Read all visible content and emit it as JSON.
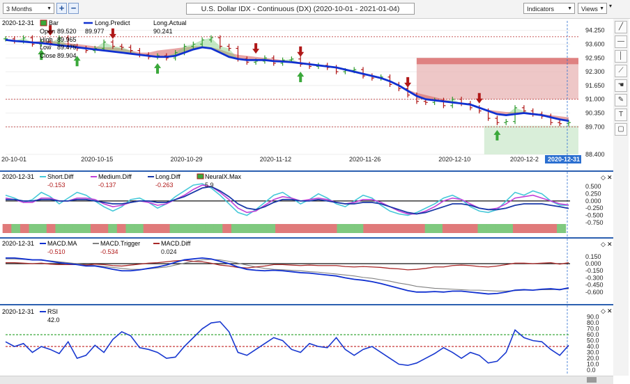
{
  "toolbar": {
    "period": "3 Months",
    "zoom_in": "+",
    "zoom_out": "−",
    "title": "U.S. Dollar IDX - Continuous (DX) (2020-10-01 - 2021-01-04)",
    "indicators": "Indicators",
    "views": "Views",
    "pin": "▾"
  },
  "side_tools": [
    "pencil-icon",
    "horizontal-line-icon",
    "vertical-line-icon",
    "trend-icon",
    "hand-icon",
    "marker-icon",
    "text-icon",
    "speech-icon"
  ],
  "colors": {
    "long_predict": "#1030d0",
    "up_arrow": "#3aa83a",
    "down_arrow": "#b01818",
    "red_band": "#d65b5b",
    "green_band": "#7fcf7f",
    "short_diff": "#45c8d8",
    "medium_diff": "#c040d8",
    "long_diff": "#1838a8",
    "macd_ma": "#1030d0",
    "macd_trigger": "#808080",
    "macd_diff": "#a82828",
    "rsi": "#1838d0"
  },
  "chart_data": [
    {
      "type": "ohlc-bar",
      "pane": "price",
      "legend": {
        "date": "2020-12-31",
        "bar_label": "Bar",
        "open_label": "Open",
        "open": "89.520",
        "high_label": "High",
        "high": "89.965",
        "low_label": "Low",
        "low": "89.475",
        "close_label": "Close",
        "close": "89.904",
        "long_predict_label": "Long.Predict",
        "long_predict": "89.977",
        "long_actual_label": "Long.Actual",
        "long_actual": "90.241"
      },
      "x_ticks": [
        "20-10-01",
        "2020-10-15",
        "2020-10-29",
        "2020-11-12",
        "2020-11-26",
        "2020-12-10",
        "2020-12-2",
        "2020-12-31"
      ],
      "y_ticks": [
        "94.250",
        "93.600",
        "92.950",
        "92.300",
        "91.650",
        "91.000",
        "90.350",
        "89.700",
        "88.400"
      ],
      "ylim": [
        88.2,
        94.6
      ],
      "close": [
        93.85,
        93.75,
        93.9,
        93.6,
        93.7,
        93.65,
        93.9,
        93.5,
        93.4,
        93.3,
        93.4,
        93.7,
        93.5,
        93.45,
        93.3,
        93.1,
        93.0,
        93.05,
        92.95,
        93.2,
        93.5,
        93.6,
        93.8,
        93.9,
        93.5,
        93.4,
        92.9,
        92.75,
        92.8,
        92.95,
        92.7,
        92.85,
        92.9,
        92.65,
        92.55,
        92.6,
        92.5,
        92.3,
        92.35,
        92.4,
        92.1,
        92.0,
        92.05,
        91.7,
        91.5,
        91.2,
        90.9,
        90.85,
        90.95,
        90.7,
        91.0,
        90.8,
        90.6,
        90.45,
        90.1,
        89.9,
        89.95,
        90.6,
        90.45,
        90.3,
        90.2,
        89.9,
        89.85,
        89.9
      ],
      "long_predict": [
        93.8,
        93.75,
        93.72,
        93.68,
        93.65,
        93.6,
        93.55,
        93.5,
        93.45,
        93.4,
        93.35,
        93.3,
        93.25,
        93.2,
        93.15,
        93.1,
        93.05,
        93.0,
        93.0,
        93.05,
        93.2,
        93.35,
        93.45,
        93.4,
        93.2,
        93.0,
        92.9,
        92.85,
        92.85,
        92.85,
        92.8,
        92.78,
        92.75,
        92.7,
        92.65,
        92.6,
        92.55,
        92.5,
        92.4,
        92.3,
        92.2,
        92.1,
        92.0,
        91.85,
        91.65,
        91.4,
        91.15,
        91.0,
        90.95,
        90.9,
        90.85,
        90.8,
        90.75,
        90.6,
        90.45,
        90.3,
        90.25,
        90.3,
        90.35,
        90.3,
        90.25,
        90.15,
        90.05,
        89.98
      ],
      "resistance_band_top": [
        93.6,
        93.6,
        93.65,
        93.7,
        93.75,
        93.75,
        93.7,
        93.65,
        93.6,
        93.55,
        93.5,
        93.45,
        93.45,
        93.4,
        93.3,
        93.2,
        93.2,
        93.3,
        93.35,
        93.4,
        93.45,
        93.5,
        93.5,
        93.45,
        93.35,
        93.2,
        93.1,
        93.05,
        93.0,
        92.95,
        92.9,
        92.85,
        92.8,
        92.75,
        92.7,
        92.6,
        92.5,
        92.4,
        92.3,
        92.2,
        92.1,
        92.0,
        91.9,
        91.75,
        91.6,
        91.45,
        91.3,
        91.2,
        91.1,
        91.0,
        90.9,
        90.8,
        90.7,
        90.6,
        90.5,
        90.45,
        90.4,
        90.4,
        90.4,
        90.35,
        90.3,
        90.25,
        90.2,
        90.15
      ],
      "buy_signals": [
        4,
        8,
        17,
        33,
        55,
        65,
        67
      ],
      "sell_signals": [
        5,
        12,
        28,
        33,
        45,
        53,
        65
      ],
      "resistance_zones": [
        {
          "from_x": 0.73,
          "to_x": 1.0,
          "low": 92.65,
          "high": 92.95
        },
        {
          "from_x": 0.73,
          "to_x": 1.0,
          "low": 91.0,
          "high": 92.65
        }
      ],
      "support_zone": {
        "from_x": 0.85,
        "to_x": 1.0,
        "low": 88.4,
        "high": 89.75
      }
    },
    {
      "type": "line",
      "pane": "diff",
      "legend": {
        "date": "2020-12-31",
        "short_label": "Short.Diff",
        "short": "-0.153",
        "medium_label": "Medium.Diff",
        "medium": "-0.137",
        "long_label": "Long.Diff",
        "long": "-0.263",
        "neural_label": "NeuralX.Max",
        "neural": "5.9"
      },
      "y_ticks": [
        "0.500",
        "0.250",
        "0.000",
        "-0.250",
        "-0.500",
        "-0.750"
      ],
      "ylim": [
        -0.8,
        0.65
      ],
      "short_diff": [
        0.2,
        0.1,
        -0.05,
        0.05,
        0.3,
        0.15,
        -0.1,
        0.1,
        0.3,
        0.2,
        0.0,
        -0.2,
        -0.35,
        -0.2,
        0.05,
        0.1,
        -0.05,
        -0.25,
        -0.1,
        0.15,
        0.35,
        0.55,
        0.6,
        0.45,
        0.2,
        -0.1,
        -0.4,
        -0.5,
        -0.3,
        -0.05,
        0.2,
        0.3,
        0.1,
        -0.1,
        0.05,
        0.25,
        0.1,
        -0.1,
        -0.2,
        0.0,
        0.2,
        0.1,
        -0.15,
        -0.35,
        -0.45,
        -0.5,
        -0.4,
        -0.25,
        -0.1,
        0.1,
        0.2,
        0.05,
        -0.2,
        -0.35,
        -0.4,
        -0.3,
        0.0,
        0.3,
        0.2,
        0.35,
        0.25,
        0.0,
        -0.15,
        -0.15
      ],
      "medium_diff": [
        0.1,
        0.05,
        -0.05,
        -0.05,
        0.1,
        0.1,
        0.0,
        0.0,
        0.1,
        0.1,
        0.05,
        -0.1,
        -0.2,
        -0.15,
        -0.05,
        0.0,
        -0.05,
        -0.15,
        -0.1,
        0.05,
        0.2,
        0.4,
        0.55,
        0.5,
        0.3,
        0.05,
        -0.25,
        -0.4,
        -0.35,
        -0.15,
        0.05,
        0.15,
        0.1,
        0.0,
        0.05,
        0.1,
        0.05,
        -0.05,
        -0.1,
        -0.05,
        0.05,
        0.05,
        -0.05,
        -0.2,
        -0.35,
        -0.45,
        -0.45,
        -0.35,
        -0.2,
        0.0,
        0.1,
        0.05,
        -0.1,
        -0.25,
        -0.3,
        -0.25,
        -0.1,
        0.1,
        0.15,
        0.2,
        0.1,
        0.0,
        -0.1,
        -0.14
      ],
      "long_diff": [
        0.05,
        0.05,
        0.0,
        0.0,
        0.05,
        0.05,
        0.0,
        0.0,
        0.05,
        0.05,
        0.0,
        -0.05,
        -0.1,
        -0.1,
        -0.05,
        0.0,
        0.0,
        -0.05,
        -0.05,
        0.05,
        0.15,
        0.3,
        0.45,
        0.5,
        0.35,
        0.15,
        -0.1,
        -0.25,
        -0.3,
        -0.2,
        -0.05,
        0.05,
        0.05,
        0.0,
        0.0,
        0.05,
        0.0,
        -0.05,
        -0.1,
        -0.1,
        -0.05,
        -0.05,
        -0.1,
        -0.2,
        -0.3,
        -0.4,
        -0.45,
        -0.4,
        -0.3,
        -0.2,
        -0.1,
        -0.1,
        -0.15,
        -0.25,
        -0.3,
        -0.3,
        -0.25,
        -0.15,
        -0.1,
        -0.1,
        -0.1,
        -0.15,
        -0.2,
        -0.26
      ],
      "neural_strip": [
        "r",
        "g",
        "r",
        "g",
        "g",
        "r",
        "g",
        "g",
        "g",
        "g",
        "r",
        "r",
        "g",
        "r",
        "g",
        "g",
        "r",
        "r",
        "r",
        "g",
        "g",
        "g",
        "g",
        "g",
        "g",
        "r",
        "g",
        "g",
        "g",
        "g",
        "g",
        "r",
        "r",
        "r",
        "r",
        "r",
        "r",
        "r",
        "g",
        "g",
        "g",
        "r",
        "r",
        "r",
        "r",
        "r",
        "r",
        "r",
        "g",
        "g",
        "r",
        "r",
        "r",
        "r",
        "g",
        "g",
        "g",
        "g",
        "r",
        "r",
        "r",
        "r",
        "r",
        "g"
      ]
    },
    {
      "type": "line",
      "pane": "macd",
      "legend": {
        "date": "2020-12-31",
        "ma_label": "MACD.MA",
        "ma": "-0.510",
        "trigger_label": "MACD.Trigger",
        "trigger": "-0.534",
        "diff_label": "MACD.Diff",
        "diff": "0.024"
      },
      "y_ticks": [
        "0.150",
        "0.000",
        "-0.150",
        "-0.300",
        "-0.450",
        "-0.600"
      ],
      "ylim": [
        -0.72,
        0.25
      ],
      "macd_ma": [
        0.12,
        0.12,
        0.1,
        0.08,
        0.08,
        0.05,
        0.02,
        0.0,
        -0.02,
        -0.05,
        -0.05,
        -0.08,
        -0.12,
        -0.15,
        -0.15,
        -0.13,
        -0.1,
        -0.07,
        -0.03,
        0.03,
        0.08,
        0.1,
        0.12,
        0.1,
        0.05,
        0.0,
        -0.07,
        -0.12,
        -0.14,
        -0.15,
        -0.14,
        -0.15,
        -0.17,
        -0.19,
        -0.2,
        -0.22,
        -0.24,
        -0.26,
        -0.3,
        -0.33,
        -0.35,
        -0.38,
        -0.42,
        -0.47,
        -0.52,
        -0.57,
        -0.6,
        -0.6,
        -0.59,
        -0.6,
        -0.58,
        -0.58,
        -0.6,
        -0.62,
        -0.64,
        -0.63,
        -0.6,
        -0.56,
        -0.55,
        -0.56,
        -0.54,
        -0.53,
        -0.55,
        -0.51
      ],
      "macd_trigger": [
        0.1,
        0.1,
        0.09,
        0.08,
        0.07,
        0.06,
        0.04,
        0.02,
        0.0,
        -0.02,
        -0.04,
        -0.06,
        -0.08,
        -0.1,
        -0.12,
        -0.12,
        -0.11,
        -0.09,
        -0.07,
        -0.03,
        0.01,
        0.05,
        0.08,
        0.09,
        0.08,
        0.05,
        0.01,
        -0.03,
        -0.07,
        -0.1,
        -0.12,
        -0.13,
        -0.14,
        -0.15,
        -0.17,
        -0.18,
        -0.2,
        -0.22,
        -0.24,
        -0.26,
        -0.29,
        -0.31,
        -0.34,
        -0.37,
        -0.41,
        -0.44,
        -0.48,
        -0.5,
        -0.52,
        -0.53,
        -0.54,
        -0.55,
        -0.56,
        -0.56,
        -0.57,
        -0.58,
        -0.58,
        -0.57,
        -0.56,
        -0.56,
        -0.55,
        -0.55,
        -0.54,
        -0.53
      ],
      "macd_diff": [
        0.02,
        0.02,
        0.01,
        0.0,
        0.01,
        -0.01,
        -0.02,
        -0.02,
        -0.02,
        -0.03,
        -0.01,
        -0.02,
        -0.04,
        -0.05,
        -0.03,
        -0.01,
        0.01,
        0.02,
        0.04,
        0.06,
        0.07,
        0.05,
        0.04,
        0.01,
        -0.03,
        -0.05,
        -0.08,
        -0.09,
        -0.07,
        -0.05,
        -0.02,
        -0.02,
        -0.03,
        -0.04,
        -0.03,
        -0.04,
        -0.04,
        -0.04,
        -0.06,
        -0.07,
        -0.06,
        -0.07,
        -0.08,
        -0.1,
        -0.11,
        -0.13,
        -0.12,
        -0.1,
        -0.07,
        -0.07,
        -0.04,
        -0.03,
        -0.04,
        -0.06,
        -0.07,
        -0.05,
        -0.02,
        0.01,
        0.01,
        0.0,
        0.01,
        0.02,
        -0.01,
        0.02
      ]
    },
    {
      "type": "line",
      "pane": "rsi",
      "legend": {
        "date": "2020-12-31",
        "rsi_label": "RSI",
        "rsi": "42.0"
      },
      "y_ticks": [
        "90.0",
        "80.0",
        "70.0",
        "60.0",
        "50.0",
        "40.0",
        "30.0",
        "20.0",
        "10.0",
        "0.0"
      ],
      "ylim": [
        0,
        92
      ],
      "overbought": 60,
      "oversold": 40,
      "rsi": [
        48,
        40,
        45,
        30,
        40,
        35,
        28,
        48,
        20,
        25,
        42,
        30,
        52,
        65,
        58,
        38,
        35,
        30,
        20,
        22,
        40,
        55,
        70,
        80,
        82,
        65,
        30,
        25,
        35,
        45,
        55,
        50,
        35,
        30,
        45,
        40,
        38,
        55,
        35,
        25,
        35,
        40,
        30,
        20,
        10,
        8,
        12,
        20,
        28,
        38,
        30,
        20,
        30,
        25,
        12,
        15,
        30,
        68,
        55,
        50,
        48,
        35,
        25,
        42
      ],
      "x_tick_labels_ref": "shared with price pane"
    }
  ]
}
